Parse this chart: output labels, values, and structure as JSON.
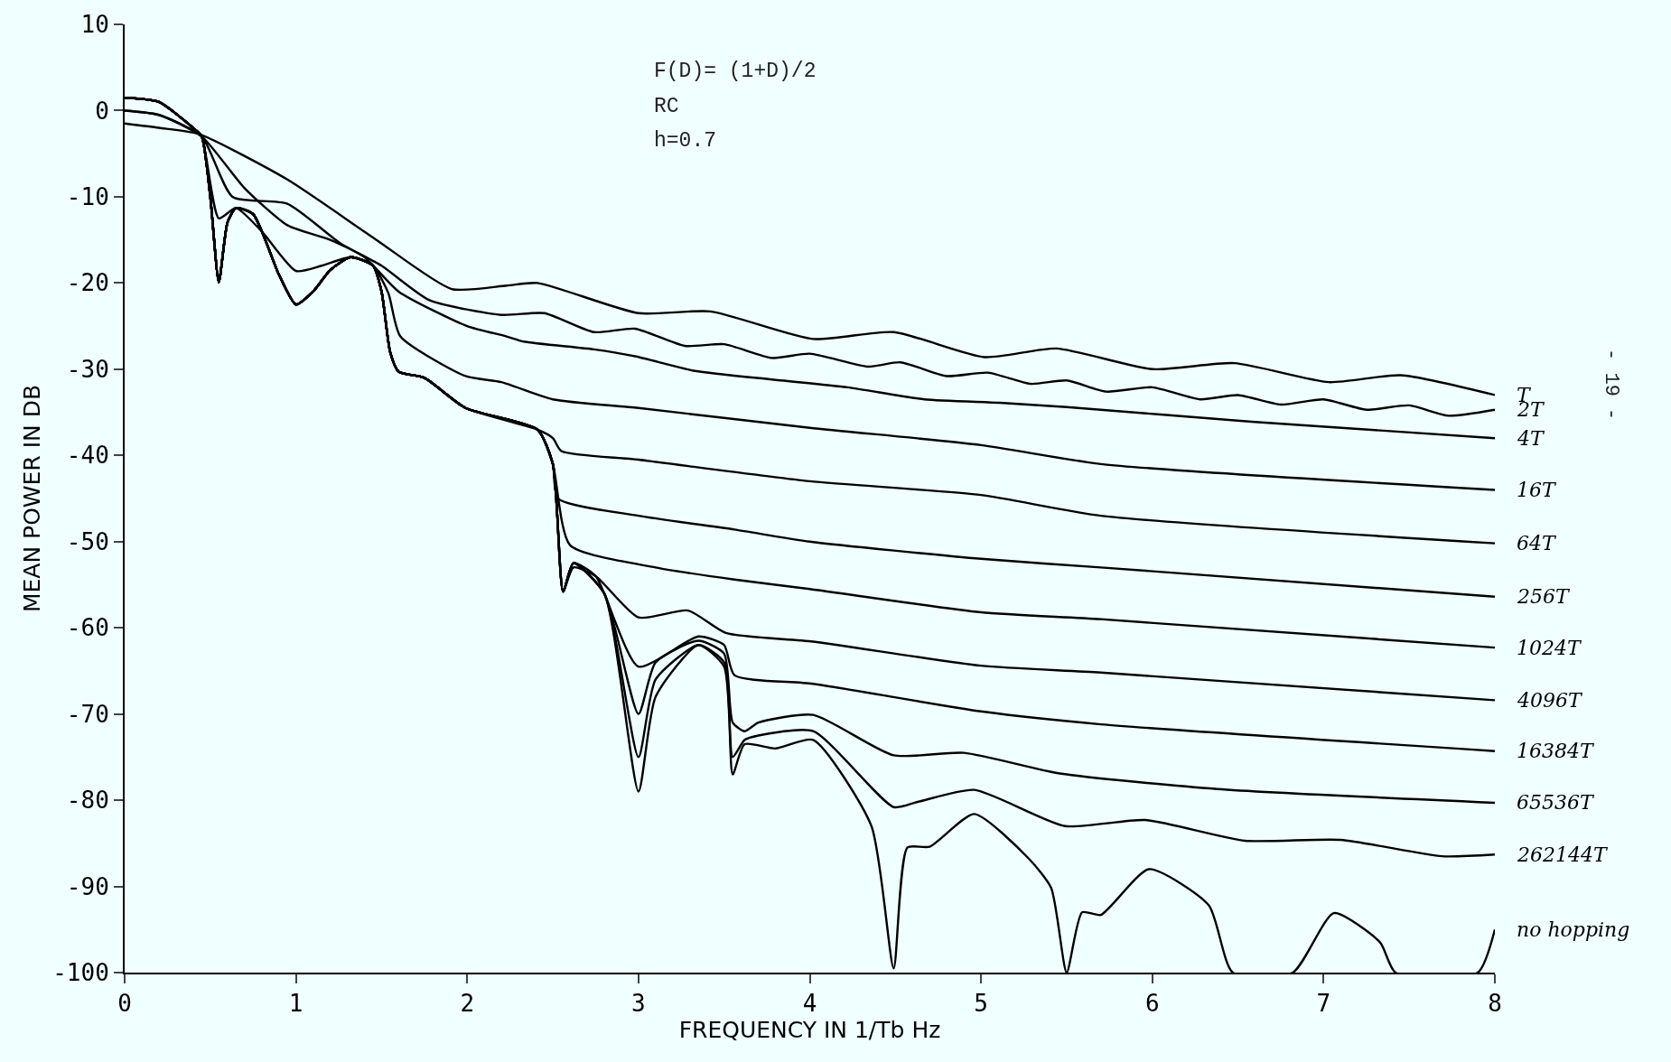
{
  "chart_data": {
    "type": "line",
    "xlabel": "FREQUENCY IN 1/Tb Hz",
    "ylabel": "MEAN POWER IN DB",
    "annotations": [
      "F(D)= (1+D)/2",
      "RC",
      "h=0.7",
      "- 19 -"
    ],
    "xlim": [
      0,
      8
    ],
    "xticks": [
      0,
      1,
      2,
      3,
      4,
      5,
      6,
      7,
      8
    ],
    "ylim": [
      -100,
      10
    ],
    "yticks": [
      10,
      0,
      -10,
      -20,
      -30,
      -40,
      -50,
      -60,
      -70,
      -80,
      -90,
      -100
    ],
    "grid": false,
    "legend": false,
    "marker": "none",
    "line_style": "solid",
    "series": [
      {
        "name": "T",
        "color": "#000000",
        "x": [
          0,
          0.2,
          0.43,
          0.95,
          1.47,
          1.91,
          2.23,
          2.41,
          3.0,
          3.42,
          4.02,
          4.49,
          5.02,
          5.44,
          6.0,
          6.48,
          7.03,
          7.45,
          8
        ],
        "values": [
          -1.5,
          -2,
          -2.7,
          -8,
          -15,
          -20.7,
          -20.3,
          -20,
          -23.5,
          -23.3,
          -26.5,
          -25.7,
          -28.6,
          -27.6,
          -30,
          -29.3,
          -31.5,
          -30.7,
          -33
        ]
      },
      {
        "name": "2T",
        "color": "#000000",
        "x": [
          0,
          0.2,
          0.45,
          0.63,
          0.95,
          1.26,
          1.5,
          1.78,
          2.2,
          2.45,
          2.74,
          2.98,
          3.27,
          3.5,
          3.78,
          4.0,
          4.34,
          4.53,
          4.8,
          5.04,
          5.29,
          5.5,
          5.73,
          6.0,
          6.28,
          6.5,
          6.75,
          7.0,
          7.25,
          7.5,
          7.73,
          8
        ],
        "values": [
          0,
          -0.5,
          -3,
          -10,
          -10.8,
          -15.4,
          -18,
          -22,
          -23.7,
          -23.5,
          -25.7,
          -25.3,
          -27.3,
          -27.1,
          -28.7,
          -28.2,
          -29.7,
          -29.2,
          -30.8,
          -30.4,
          -31.7,
          -31.3,
          -32.6,
          -32.1,
          -33.5,
          -33,
          -34.1,
          -33.5,
          -34.7,
          -34.2,
          -35.4,
          -34.7
        ]
      },
      {
        "name": "4T",
        "color": "#000000",
        "x": [
          0,
          0.2,
          0.45,
          0.7,
          0.95,
          1.2,
          1.4,
          1.6,
          2.0,
          2.23,
          2.33,
          2.74,
          2.98,
          3.33,
          3.78,
          4.22,
          4.67,
          5.11,
          5.5,
          6.58,
          7.33,
          8
        ],
        "values": [
          0,
          -0.5,
          -3,
          -9,
          -13.3,
          -15,
          -17,
          -21,
          -25,
          -26.2,
          -26.8,
          -27.7,
          -28.5,
          -30.2,
          -31.2,
          -32.1,
          -33.5,
          -33.9,
          -34.4,
          -36.1,
          -37.1,
          -38
        ]
      },
      {
        "name": "16T",
        "color": "#000000",
        "x": [
          0,
          0.2,
          0.4,
          0.45,
          0.55,
          0.65,
          0.8,
          1.0,
          1.15,
          1.32,
          1.45,
          1.54,
          1.61,
          1.99,
          2.2,
          2.5,
          3.0,
          4.0,
          5.0,
          5.7,
          8
        ],
        "values": [
          1.5,
          1,
          -2,
          -3,
          -12.5,
          -11.3,
          -14,
          -18.6,
          -18,
          -17,
          -18,
          -21.2,
          -26.2,
          -30.8,
          -31.5,
          -33.5,
          -34.5,
          -36.8,
          -38.8,
          -41,
          -44
        ]
      },
      {
        "name": "64T",
        "color": "#000000",
        "x": [
          0,
          0.2,
          0.4,
          0.45,
          0.5,
          0.55,
          0.6,
          0.65,
          0.75,
          0.9,
          1.0,
          1.1,
          1.2,
          1.32,
          1.45,
          1.5,
          1.55,
          1.6,
          1.75,
          1.99,
          2.41,
          2.5,
          2.55,
          3.0,
          4.0,
          5.0,
          5.7,
          8
        ],
        "values": [
          1.5,
          1,
          -2,
          -3,
          -10,
          -19.9,
          -13,
          -11.3,
          -12,
          -19,
          -22.5,
          -21,
          -18.5,
          -17,
          -18,
          -21,
          -28,
          -30.3,
          -31,
          -34.5,
          -37,
          -38,
          -39.5,
          -40.5,
          -43,
          -44.6,
          -47,
          -50.2
        ]
      },
      {
        "name": "256T",
        "color": "#000000",
        "x": [
          0,
          0.2,
          0.4,
          0.45,
          0.5,
          0.55,
          0.6,
          0.65,
          0.75,
          0.9,
          1.0,
          1.1,
          1.2,
          1.32,
          1.45,
          1.5,
          1.55,
          1.6,
          1.75,
          1.99,
          2.41,
          2.5,
          2.53,
          3.0,
          3.56,
          4.0,
          5.0,
          5.7,
          8
        ],
        "values": [
          1.5,
          1,
          -2,
          -3,
          -10,
          -19.9,
          -13,
          -11.3,
          -12,
          -19,
          -22.5,
          -21,
          -18.5,
          -17,
          -18,
          -21,
          -28,
          -30.3,
          -31,
          -34.5,
          -37,
          -41,
          -45,
          -47,
          -48.6,
          -50,
          -52,
          -53,
          -56.4
        ]
      },
      {
        "name": "1024T",
        "color": "#000000",
        "x": [
          0,
          0.2,
          0.4,
          0.45,
          0.5,
          0.55,
          0.6,
          0.65,
          0.75,
          0.9,
          1.0,
          1.1,
          1.2,
          1.32,
          1.45,
          1.5,
          1.55,
          1.6,
          1.75,
          1.99,
          2.41,
          2.5,
          2.6,
          3.1,
          3.56,
          4.0,
          5.0,
          5.7,
          8
        ],
        "values": [
          1.5,
          1,
          -2,
          -3,
          -10,
          -19.9,
          -13,
          -11.3,
          -12,
          -19,
          -22.5,
          -21,
          -18.5,
          -17,
          -18,
          -21,
          -28,
          -30.3,
          -31,
          -34.5,
          -37,
          -41,
          -50.4,
          -53,
          -54.4,
          -55.5,
          -58.2,
          -59,
          -62.3
        ]
      },
      {
        "name": "4096T",
        "color": "#000000",
        "x": [
          0,
          0.2,
          0.4,
          0.45,
          0.5,
          0.55,
          0.6,
          0.65,
          0.75,
          0.9,
          1.0,
          1.1,
          1.2,
          1.32,
          1.45,
          1.5,
          1.55,
          1.6,
          1.75,
          1.99,
          2.41,
          2.5,
          2.56,
          2.62,
          2.75,
          3.0,
          3.29,
          3.51,
          4.02,
          5.0,
          5.7,
          8
        ],
        "values": [
          1.5,
          1,
          -2,
          -3,
          -10,
          -19.9,
          -13,
          -11.3,
          -12,
          -19,
          -22.5,
          -21,
          -18.5,
          -17,
          -18,
          -21,
          -28,
          -30.3,
          -31,
          -34.5,
          -37,
          -41,
          -55.8,
          -53,
          -54,
          -58.8,
          -58,
          -60.6,
          -61.6,
          -64.4,
          -65.2,
          -68.4
        ]
      },
      {
        "name": "16384T",
        "color": "#000000",
        "x": [
          0,
          0.2,
          0.4,
          0.45,
          0.5,
          0.55,
          0.6,
          0.65,
          0.75,
          0.9,
          1.0,
          1.1,
          1.2,
          1.32,
          1.45,
          1.5,
          1.55,
          1.6,
          1.75,
          1.99,
          2.41,
          2.5,
          2.56,
          2.62,
          2.75,
          3.0,
          3.35,
          3.5,
          3.56,
          4.02,
          5.0,
          5.7,
          8
        ],
        "values": [
          1.5,
          1,
          -2,
          -3,
          -10,
          -19.9,
          -13,
          -11.3,
          -12,
          -19,
          -22.5,
          -21,
          -18.5,
          -17,
          -18,
          -21,
          -28,
          -30.3,
          -31,
          -34.5,
          -37,
          -41,
          -55.8,
          -52.5,
          -54,
          -64.5,
          -61,
          -62,
          -65.5,
          -66.5,
          -69.7,
          -71.2,
          -74.3
        ]
      },
      {
        "name": "65536T",
        "color": "#000000",
        "x": [
          0,
          0.2,
          0.4,
          0.45,
          0.5,
          0.55,
          0.6,
          0.65,
          0.75,
          0.9,
          1.0,
          1.1,
          1.2,
          1.32,
          1.45,
          1.5,
          1.55,
          1.6,
          1.75,
          1.99,
          2.41,
          2.5,
          2.56,
          2.62,
          2.8,
          3.0,
          3.1,
          3.35,
          3.5,
          3.55,
          3.62,
          3.7,
          4.02,
          4.49,
          4.9,
          5.46,
          6.38,
          8
        ],
        "values": [
          1.5,
          1,
          -2,
          -3,
          -10,
          -19.9,
          -13,
          -11.3,
          -12,
          -19,
          -22.5,
          -21,
          -18.5,
          -17,
          -18,
          -21,
          -28,
          -30.3,
          -31,
          -34.5,
          -37,
          -41,
          -55.8,
          -52.5,
          -56,
          -70,
          -64,
          -61.5,
          -63,
          -71,
          -72,
          -71,
          -70.1,
          -74.8,
          -74.5,
          -76.9,
          -78.7,
          -80.3
        ]
      },
      {
        "name": "262144T",
        "color": "#000000",
        "x": [
          0,
          0.2,
          0.4,
          0.45,
          0.5,
          0.55,
          0.6,
          0.65,
          0.75,
          0.9,
          1.0,
          1.1,
          1.2,
          1.32,
          1.45,
          1.5,
          1.55,
          1.6,
          1.75,
          1.99,
          2.41,
          2.5,
          2.56,
          2.62,
          2.8,
          3.0,
          3.1,
          3.35,
          3.5,
          3.55,
          3.62,
          3.7,
          4.02,
          4.49,
          4.63,
          4.96,
          5.49,
          5.96,
          6.54,
          7.1,
          7.69,
          8
        ],
        "values": [
          1.5,
          1,
          -2,
          -3,
          -10,
          -19.9,
          -13,
          -11.3,
          -12,
          -19,
          -22.5,
          -21,
          -18.5,
          -17,
          -18,
          -21,
          -28,
          -30.3,
          -31,
          -34.5,
          -37,
          -41,
          -55.8,
          -52.5,
          -56,
          -75,
          -66,
          -62,
          -64,
          -75,
          -73,
          -72.5,
          -72,
          -80.8,
          -80.2,
          -78.8,
          -83,
          -82.3,
          -84.7,
          -84.6,
          -86.5,
          -86.3
        ]
      },
      {
        "name": "no hopping",
        "color": "#000000",
        "x": [
          0,
          0.2,
          0.4,
          0.45,
          0.5,
          0.55,
          0.6,
          0.65,
          0.75,
          0.9,
          1.0,
          1.1,
          1.2,
          1.32,
          1.45,
          1.5,
          1.55,
          1.6,
          1.75,
          1.99,
          2.41,
          2.5,
          2.56,
          2.62,
          2.8,
          3.0,
          3.1,
          3.35,
          3.5,
          3.55,
          3.62,
          3.8,
          4.02,
          4.36,
          4.49,
          4.57,
          4.7,
          4.96,
          5.28,
          5.41,
          5.5,
          5.59,
          5.7,
          5.98,
          6.33,
          6.47,
          6.82,
          7.06,
          7.33,
          7.42,
          7.9,
          8
        ],
        "values": [
          1.5,
          1,
          -2,
          -3,
          -10,
          -19.9,
          -13,
          -11.3,
          -12,
          -19,
          -22.5,
          -21,
          -18.5,
          -17,
          -18,
          -21,
          -28,
          -30.3,
          -31,
          -34.5,
          -37,
          -41,
          -55.8,
          -52.5,
          -56,
          -79,
          -68,
          -62,
          -64.5,
          -77,
          -73.5,
          -74,
          -73,
          -83,
          -99.5,
          -85.5,
          -85.4,
          -81.6,
          -86.8,
          -90.2,
          -100,
          -93,
          -93.3,
          -88,
          -92.2,
          -100,
          -100,
          -93.1,
          -96.5,
          -100,
          -100,
          -95
        ]
      }
    ]
  }
}
